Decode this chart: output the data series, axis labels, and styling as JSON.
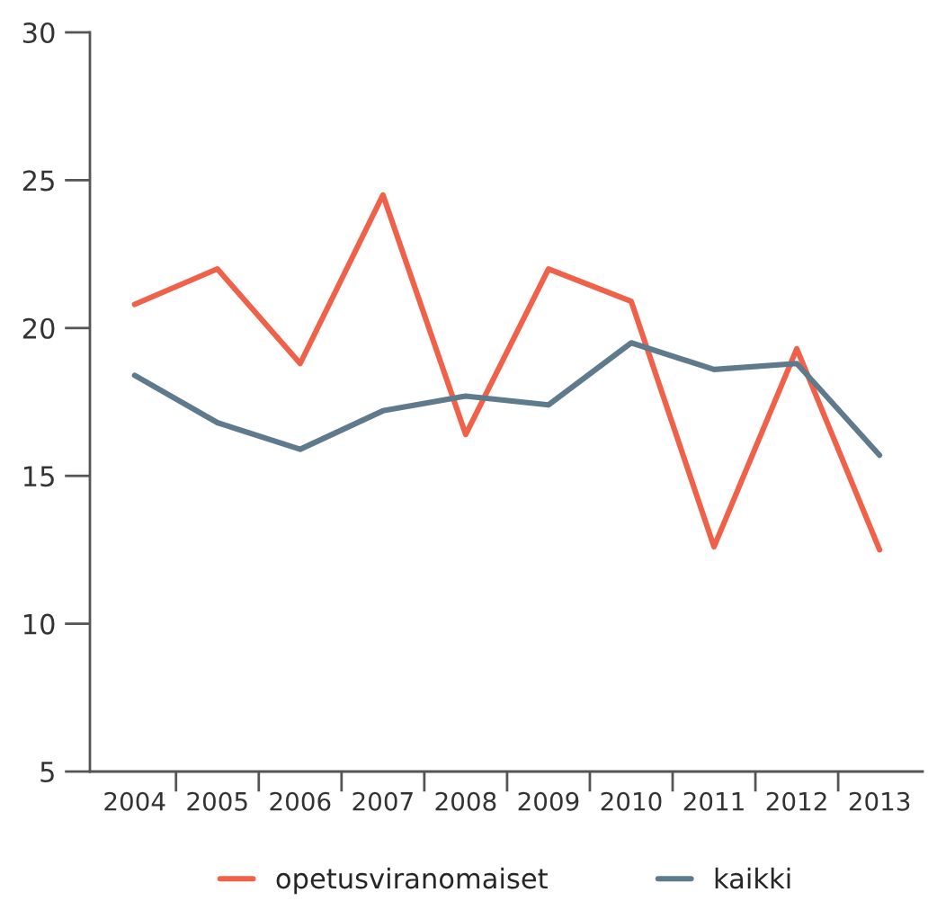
{
  "chart_data": {
    "type": "line",
    "categories": [
      "2004",
      "2005",
      "2006",
      "2007",
      "2008",
      "2009",
      "2010",
      "2011",
      "2012",
      "2013"
    ],
    "series": [
      {
        "name": "opetusviranomaiset",
        "color": "#f0614a",
        "values": [
          20.8,
          22.0,
          18.8,
          24.5,
          16.4,
          22.0,
          20.9,
          12.6,
          19.3,
          12.5
        ]
      },
      {
        "name": "kaikki",
        "color": "#5f7a8c",
        "values": [
          18.4,
          16.8,
          15.9,
          17.2,
          17.7,
          17.4,
          19.5,
          18.6,
          18.8,
          15.7
        ]
      }
    ],
    "ylim": [
      5,
      30
    ],
    "yticks": [
      5,
      10,
      15,
      20,
      25,
      30
    ],
    "grid": false,
    "legend": "bottom",
    "marker": "none",
    "line_style": "solid"
  }
}
